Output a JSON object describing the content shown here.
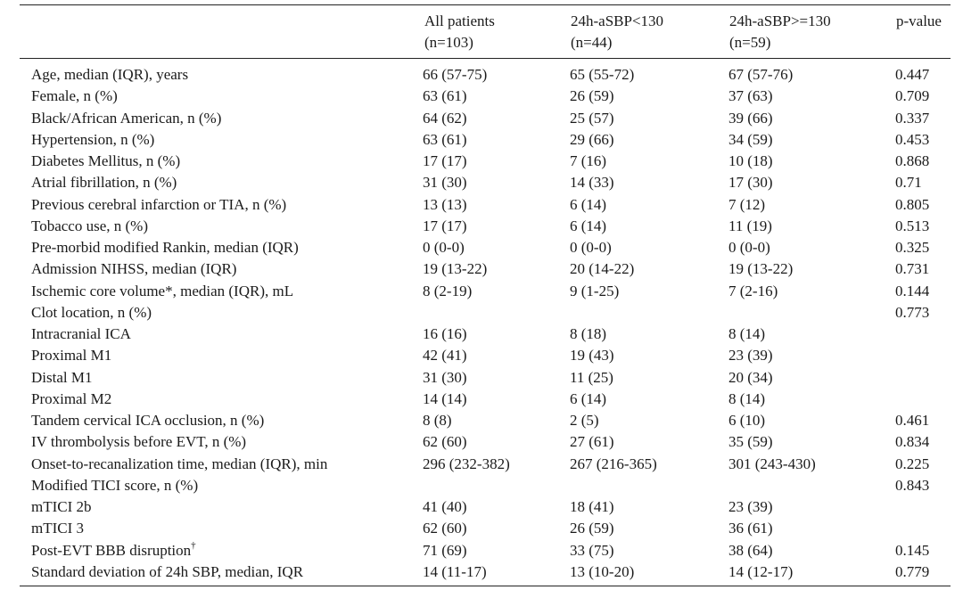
{
  "header": {
    "columns": [
      {
        "line1": "",
        "line2": ""
      },
      {
        "line1": "All patients",
        "line2": "(n=103)"
      },
      {
        "line1": "24h-aSBP<130",
        "line2": "(n=44)"
      },
      {
        "line1": "24h-aSBP>=130",
        "line2": "(n=59)"
      },
      {
        "line1": "p-value",
        "line2": ""
      }
    ]
  },
  "rows": [
    {
      "label": "Age, median (IQR), years",
      "all": "66 (57-75)",
      "low": "65 (55-72)",
      "high": "67 (57-76)",
      "p": "0.447",
      "indent": false
    },
    {
      "label": "Female, n (%)",
      "all": "63 (61)",
      "low": "26 (59)",
      "high": "37 (63)",
      "p": "0.709",
      "indent": false
    },
    {
      "label": "Black/African American, n (%)",
      "all": "64 (62)",
      "low": "25 (57)",
      "high": "39 (66)",
      "p": "0.337",
      "indent": false
    },
    {
      "label": "Hypertension, n (%)",
      "all": "63 (61)",
      "low": "29 (66)",
      "high": "34 (59)",
      "p": "0.453",
      "indent": false
    },
    {
      "label": "Diabetes Mellitus, n (%)",
      "all": "17 (17)",
      "low": "7 (16)",
      "high": "10 (18)",
      "p": "0.868",
      "indent": false
    },
    {
      "label": "Atrial fibrillation, n (%)",
      "all": "31 (30)",
      "low": "14 (33)",
      "high": "17 (30)",
      "p": "0.71",
      "indent": false
    },
    {
      "label": "Previous cerebral infarction or TIA, n (%)",
      "all": "13 (13)",
      "low": "6 (14)",
      "high": "7 (12)",
      "p": "0.805",
      "indent": false
    },
    {
      "label": "Tobacco use, n (%)",
      "all": "17 (17)",
      "low": "6 (14)",
      "high": "11 (19)",
      "p": "0.513",
      "indent": false
    },
    {
      "label": "Pre-morbid modified Rankin, median (IQR)",
      "all": "0 (0-0)",
      "low": "0 (0-0)",
      "high": "0 (0-0)",
      "p": "0.325",
      "indent": false
    },
    {
      "label": "Admission NIHSS, median (IQR)",
      "all": "19 (13-22)",
      "low": "20 (14-22)",
      "high": "19 (13-22)",
      "p": "0.731",
      "indent": false
    },
    {
      "label": "Ischemic core volume*, median (IQR), mL",
      "all": "8 (2-19)",
      "low": "9 (1-25)",
      "high": "7 (2-16)",
      "p": "0.144",
      "indent": false
    },
    {
      "label": "Clot location, n (%)",
      "all": "",
      "low": "",
      "high": "",
      "p": "0.773",
      "indent": false
    },
    {
      "label": "Intracranial ICA",
      "all": "16 (16)",
      "low": "8 (18)",
      "high": "8 (14)",
      "p": "",
      "indent": true
    },
    {
      "label": "Proximal M1",
      "all": "42 (41)",
      "low": "19 (43)",
      "high": "23 (39)",
      "p": "",
      "indent": true
    },
    {
      "label": "Distal M1",
      "all": "31 (30)",
      "low": "11 (25)",
      "high": "20 (34)",
      "p": "",
      "indent": true
    },
    {
      "label": "Proximal M2",
      "all": "14 (14)",
      "low": "6 (14)",
      "high": "8 (14)",
      "p": "",
      "indent": true
    },
    {
      "label": "Tandem cervical ICA occlusion, n (%)",
      "all": "8 (8)",
      "low": "2 (5)",
      "high": "6 (10)",
      "p": "0.461",
      "indent": false
    },
    {
      "label": "IV thrombolysis before EVT, n (%)",
      "all": "62 (60)",
      "low": "27 (61)",
      "high": "35 (59)",
      "p": "0.834",
      "indent": false
    },
    {
      "label": "Onset-to-recanalization time, median (IQR), min",
      "all": "296 (232-382)",
      "low": "267 (216-365)",
      "high": "301 (243-430)",
      "p": "0.225",
      "indent": false
    },
    {
      "label": "Modified TICI score, n (%)",
      "all": "",
      "low": "",
      "high": "",
      "p": "0.843",
      "indent": false
    },
    {
      "label": "mTICI 2b",
      "all": "41 (40)",
      "low": "18 (41)",
      "high": "23 (39)",
      "p": "",
      "indent": true
    },
    {
      "label": "mTICI 3",
      "all": "62 (60)",
      "low": "26 (59)",
      "high": "36 (61)",
      "p": "",
      "indent": true
    },
    {
      "label": "Post-EVT BBB disruption",
      "sup": "†",
      "all": "71 (69)",
      "low": "33 (75)",
      "high": "38 (64)",
      "p": "0.145",
      "indent": false
    },
    {
      "label": "Standard deviation of 24h SBP, median, IQR",
      "all": "14 (11-17)",
      "low": "13 (10-20)",
      "high": "14 (12-17)",
      "p": "0.779",
      "indent": false
    }
  ]
}
